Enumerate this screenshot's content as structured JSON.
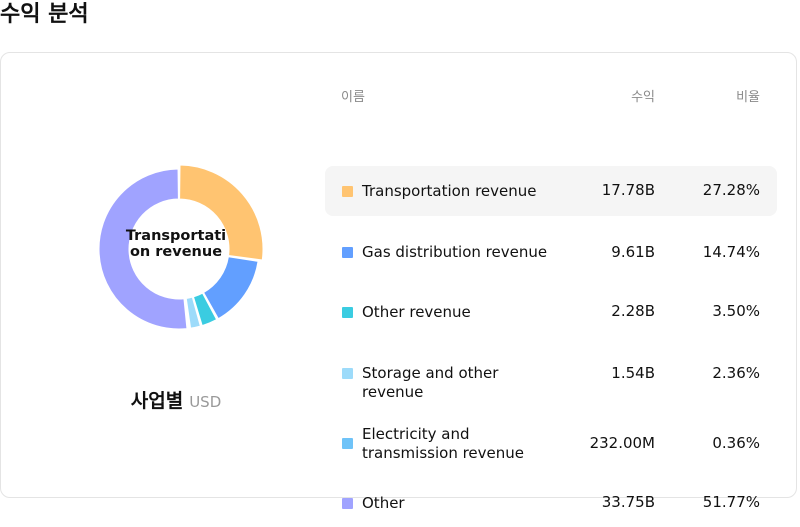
{
  "page_title": "수익 분석",
  "chart_caption": {
    "main": "사업별",
    "unit": "USD"
  },
  "table_headers": {
    "name": "이름",
    "revenue": "수익",
    "ratio": "비율"
  },
  "center_label": "Transportation revenue",
  "colors": {
    "highlight_row": "#f5f5f5",
    "header_text": "#8a8a8a"
  },
  "chart_data": {
    "type": "pie",
    "variant": "donut",
    "currency": "USD",
    "slices": [
      {
        "name": "Transportation revenue",
        "revenue": "17.78B",
        "value": 17.78,
        "percent_label": "27.28%",
        "percent": 27.28,
        "color": "#FFC471",
        "highlighted": true
      },
      {
        "name": "Gas distribution revenue",
        "revenue": "9.61B",
        "value": 9.61,
        "percent_label": "14.74%",
        "percent": 14.74,
        "color": "#629FFF",
        "highlighted": false
      },
      {
        "name": "Other revenue",
        "revenue": "2.28B",
        "value": 2.28,
        "percent_label": "3.50%",
        "percent": 3.5,
        "color": "#3ACCE1",
        "highlighted": false
      },
      {
        "name": "Storage and other revenue",
        "revenue": "1.54B",
        "value": 1.54,
        "percent_label": "2.36%",
        "percent": 2.36,
        "color": "#9DDBFA",
        "highlighted": false
      },
      {
        "name": "Electricity and transmission revenue",
        "revenue": "232.00M",
        "value": 0.232,
        "percent_label": "0.36%",
        "percent": 0.36,
        "color": "#6FC3F8",
        "highlighted": false
      },
      {
        "name": "Other",
        "revenue": "33.75B",
        "value": 33.75,
        "percent_label": "51.77%",
        "percent": 51.77,
        "color": "#A0A3FF",
        "highlighted": false
      }
    ]
  }
}
